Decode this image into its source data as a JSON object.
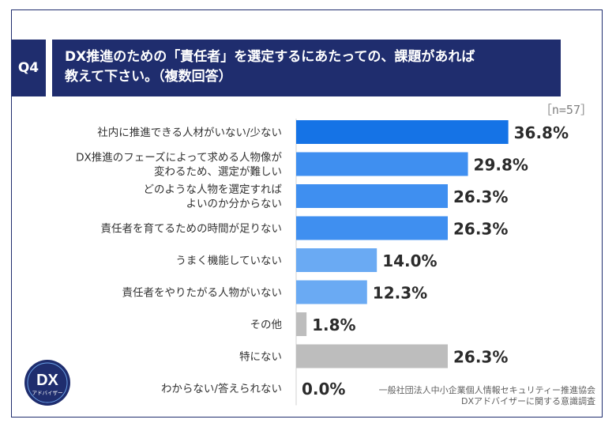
{
  "header": {
    "question_label": "Q4",
    "title_line1": "DX推進のための「責任者」を選定するにあたっての、課題があれば",
    "title_line2": "教えて下さい。（複数回答）"
  },
  "sample_size": "［n=57］",
  "source": {
    "line1": "一般社団法人中小企業個人情報セキュリティー推進協会",
    "line2": "DXアドバイザーに関する意識調査"
  },
  "logo": {
    "text": "DX",
    "subtext": "アドバイザー"
  },
  "colors": {
    "navy": "#1f2d6e",
    "bar_top": "#1573e6",
    "bar_mid": "#3f8ff0",
    "bar_light": "#6aaaf3",
    "bar_gray": "#bdbdbd"
  },
  "chart_data": {
    "type": "bar",
    "orientation": "horizontal",
    "categories": [
      [
        "社内に推進できる人材がいない/少ない"
      ],
      [
        "DX推進のフェーズによって求める人物像が",
        "変わるため、選定が難しい"
      ],
      [
        "どのような人物を選定すれば",
        "よいのか分からない"
      ],
      [
        "責任者を育てるための時間が足りない"
      ],
      [
        "うまく機能していない"
      ],
      [
        "責任者をやりたがる人物がいない"
      ],
      [
        "その他"
      ],
      [
        "特にない"
      ],
      [
        "わからない/答えられない"
      ]
    ],
    "values": [
      36.8,
      29.8,
      26.3,
      26.3,
      14.0,
      12.3,
      1.8,
      26.3,
      0.0
    ],
    "value_labels": [
      "36.8%",
      "29.8%",
      "26.3%",
      "26.3%",
      "14.0%",
      "12.3%",
      "1.8%",
      "26.3%",
      "0.0%"
    ],
    "bar_colors": [
      "#1573e6",
      "#3f8ff0",
      "#3f8ff0",
      "#3f8ff0",
      "#6aaaf3",
      "#6aaaf3",
      "#bdbdbd",
      "#bdbdbd",
      "#bdbdbd"
    ],
    "xlim": [
      0,
      40
    ],
    "grid": false,
    "legend": "none"
  }
}
